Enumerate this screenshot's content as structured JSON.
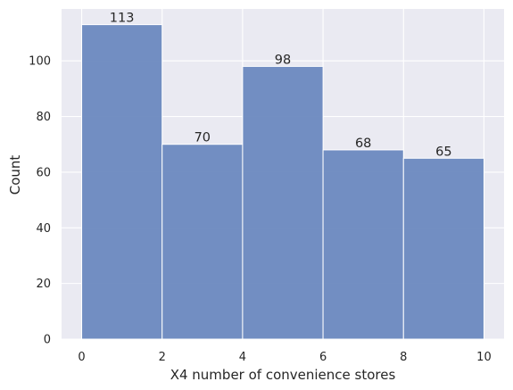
{
  "chart_data": {
    "type": "bar",
    "bins": [
      {
        "x0": 0,
        "x1": 2,
        "value": 113
      },
      {
        "x0": 2,
        "x1": 4,
        "value": 70
      },
      {
        "x0": 4,
        "x1": 6,
        "value": 98
      },
      {
        "x0": 6,
        "x1": 8,
        "value": 68
      },
      {
        "x0": 8,
        "x1": 10,
        "value": 65
      }
    ],
    "data_labels": [
      "113",
      "70",
      "98",
      "68",
      "65"
    ],
    "xlabel": "X4 number of convenience stores",
    "ylabel": "Count",
    "xlim": [
      -0.5,
      10.5
    ],
    "ylim": [
      0,
      118.65
    ],
    "xticks": [
      0,
      2,
      4,
      6,
      8,
      10
    ],
    "yticks": [
      0,
      20,
      40,
      60,
      80,
      100
    ],
    "grid": true,
    "colors": {
      "bar_fill": "#6b89bf",
      "bar_edge": "#ffffff",
      "plot_background": "#eaeaf2",
      "grid": "#ffffff"
    }
  }
}
